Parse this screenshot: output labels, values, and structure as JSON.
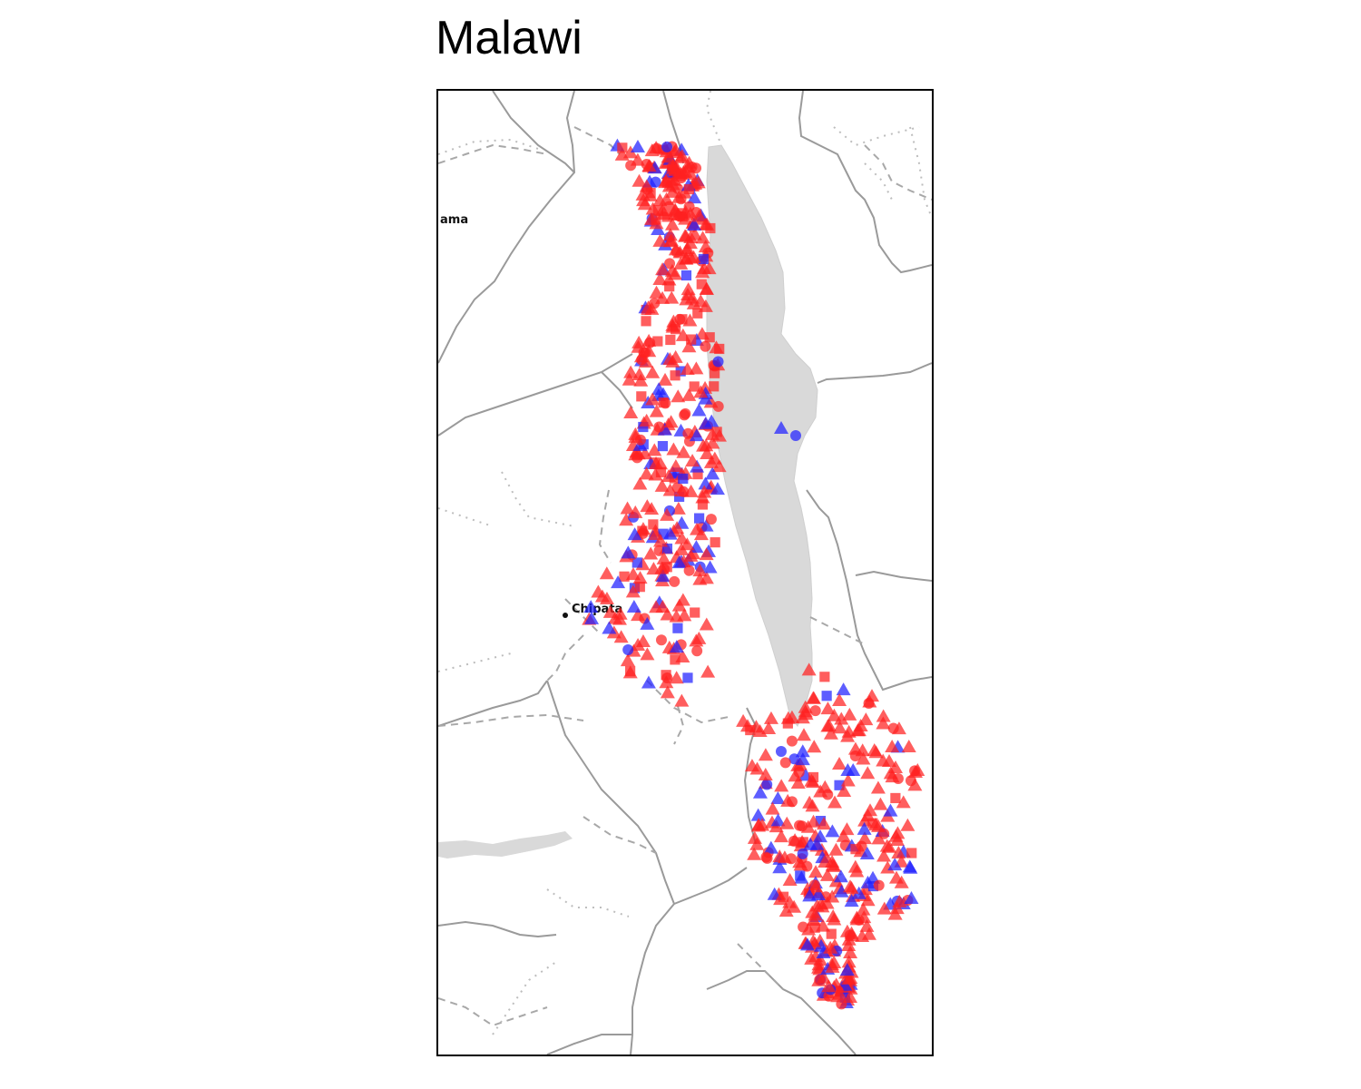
{
  "title": "Malawi",
  "basemap": {
    "place_labels": [
      "ama",
      "Chipata"
    ]
  },
  "legend": null,
  "series_colors": {
    "red": "#ff2020",
    "blue": "#2020ff",
    "lake": "#d9d9d9",
    "border": "#9a9a9a"
  },
  "marker_shapes": [
    "triangle",
    "circle",
    "square"
  ]
}
